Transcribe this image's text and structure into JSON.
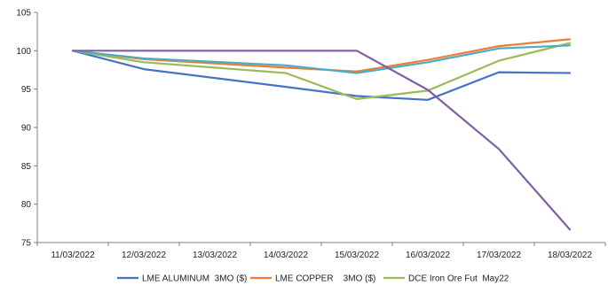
{
  "chart_data": {
    "type": "line",
    "title": "",
    "xlabel": "",
    "ylabel": "",
    "x": [
      "11/03/2022",
      "12/03/2022",
      "13/03/2022",
      "14/03/2022",
      "15/03/2022",
      "16/03/2022",
      "17/03/2022",
      "18/03/2022"
    ],
    "ylim": [
      75,
      105
    ],
    "yticks": [
      75,
      80,
      85,
      90,
      95,
      100,
      105
    ],
    "grid": false,
    "legend_position": "bottom",
    "series": [
      {
        "name": "LME ALUMINUM  3MO ($)",
        "color": "#4472C4",
        "values": [
          100,
          97.6,
          null,
          95.3,
          94.1,
          93.6,
          97.2,
          97.1
        ],
        "show_in_legend": true
      },
      {
        "name": "LME COPPER    3MO ($)",
        "color": "#ED7D31",
        "values": [
          100,
          98.9,
          null,
          97.8,
          97.3,
          98.8,
          100.6,
          101.5
        ],
        "show_in_legend": true
      },
      {
        "name": "DCE Iron Ore Fut  May22",
        "color": "#9BBB59",
        "values": [
          100,
          98.5,
          null,
          97.1,
          93.7,
          94.8,
          98.7,
          101.0
        ],
        "show_in_legend": true
      },
      {
        "name": "",
        "color": "#4BACC6",
        "values": [
          100,
          99.0,
          null,
          98.1,
          97.1,
          98.5,
          100.3,
          100.7
        ],
        "show_in_legend": false
      },
      {
        "name": "",
        "color": "#7F5FA0",
        "values": [
          100,
          100,
          null,
          100,
          100,
          94.9,
          87.2,
          76.7
        ],
        "show_in_legend": false
      }
    ]
  }
}
